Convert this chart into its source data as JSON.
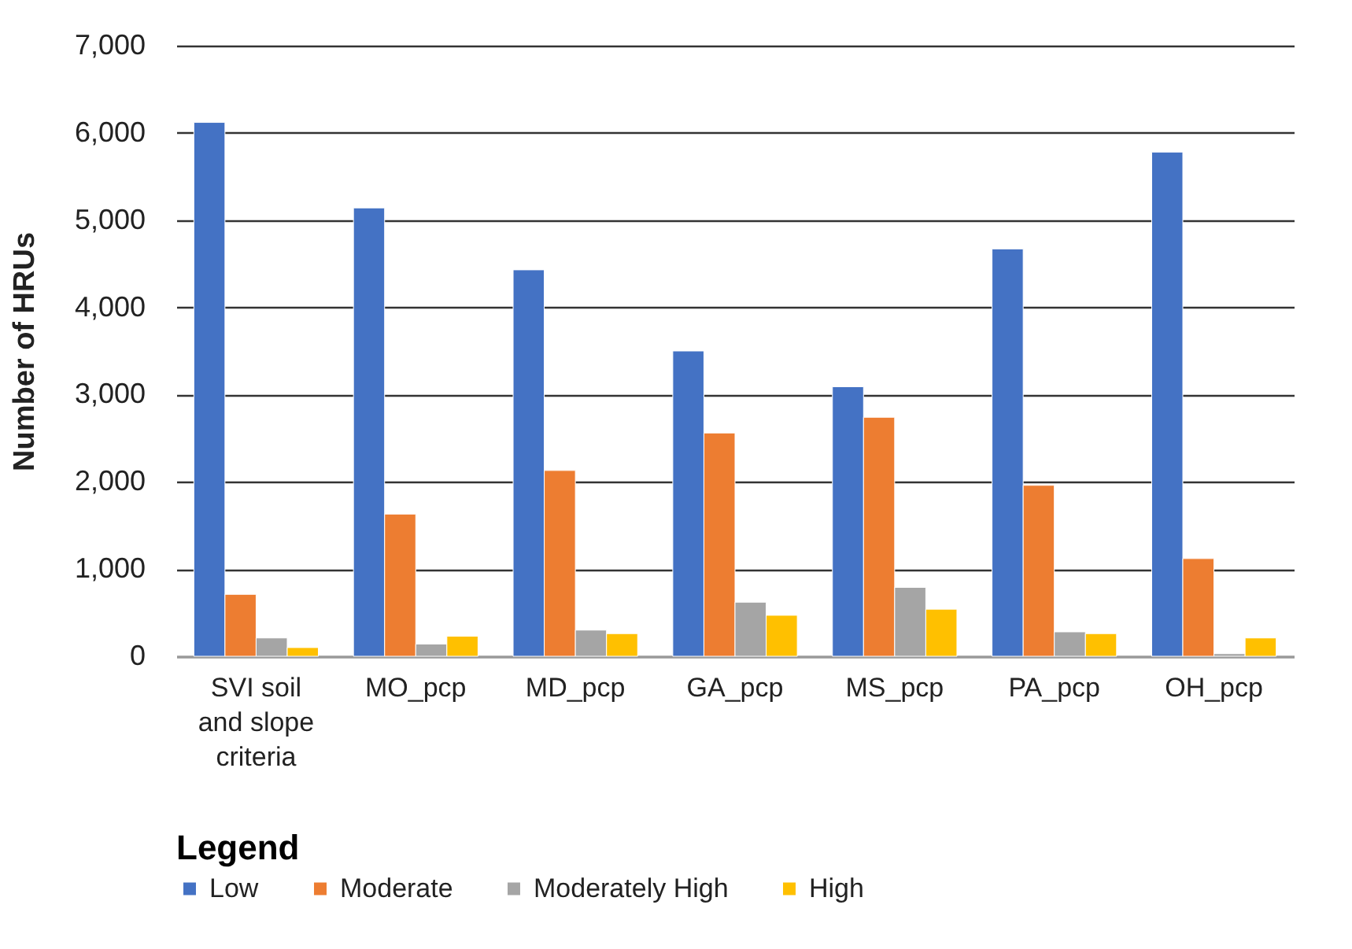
{
  "chart_data": {
    "type": "bar",
    "ylabel": "Number of HRUs",
    "legend_title": "Legend",
    "categories": [
      "SVI soil and slope criteria",
      "MO_pcp",
      "MD_pcp",
      "GA_pcp",
      "MS_pcp",
      "PA_pcp",
      "OH_pcp"
    ],
    "series": [
      {
        "name": "Low",
        "color": "#4472c4",
        "values": [
          6120,
          5140,
          4430,
          3500,
          3090,
          4670,
          5780
        ]
      },
      {
        "name": "Moderate",
        "color": "#ed7d31",
        "values": [
          710,
          1630,
          2130,
          2560,
          2740,
          1960,
          1120
        ]
      },
      {
        "name": "Moderately High",
        "color": "#a5a5a5",
        "values": [
          210,
          140,
          300,
          620,
          790,
          280,
          30
        ]
      },
      {
        "name": "High",
        "color": "#ffc000",
        "values": [
          100,
          230,
          260,
          470,
          540,
          260,
          210
        ]
      }
    ],
    "ylim": [
      0,
      7000
    ],
    "yticks": [
      0,
      {
        "value": 1000,
        "label": "1,000"
      },
      {
        "value": 2000,
        "label": "2,000"
      },
      {
        "value": 3000,
        "label": "3,000"
      },
      {
        "value": 4000,
        "label": "4,000"
      },
      {
        "value": 5000,
        "label": "5,000"
      },
      {
        "value": 6000,
        "label": "6,000"
      },
      {
        "value": 7000,
        "label": "7,000"
      }
    ],
    "grid": "y",
    "legend": "bottom"
  }
}
